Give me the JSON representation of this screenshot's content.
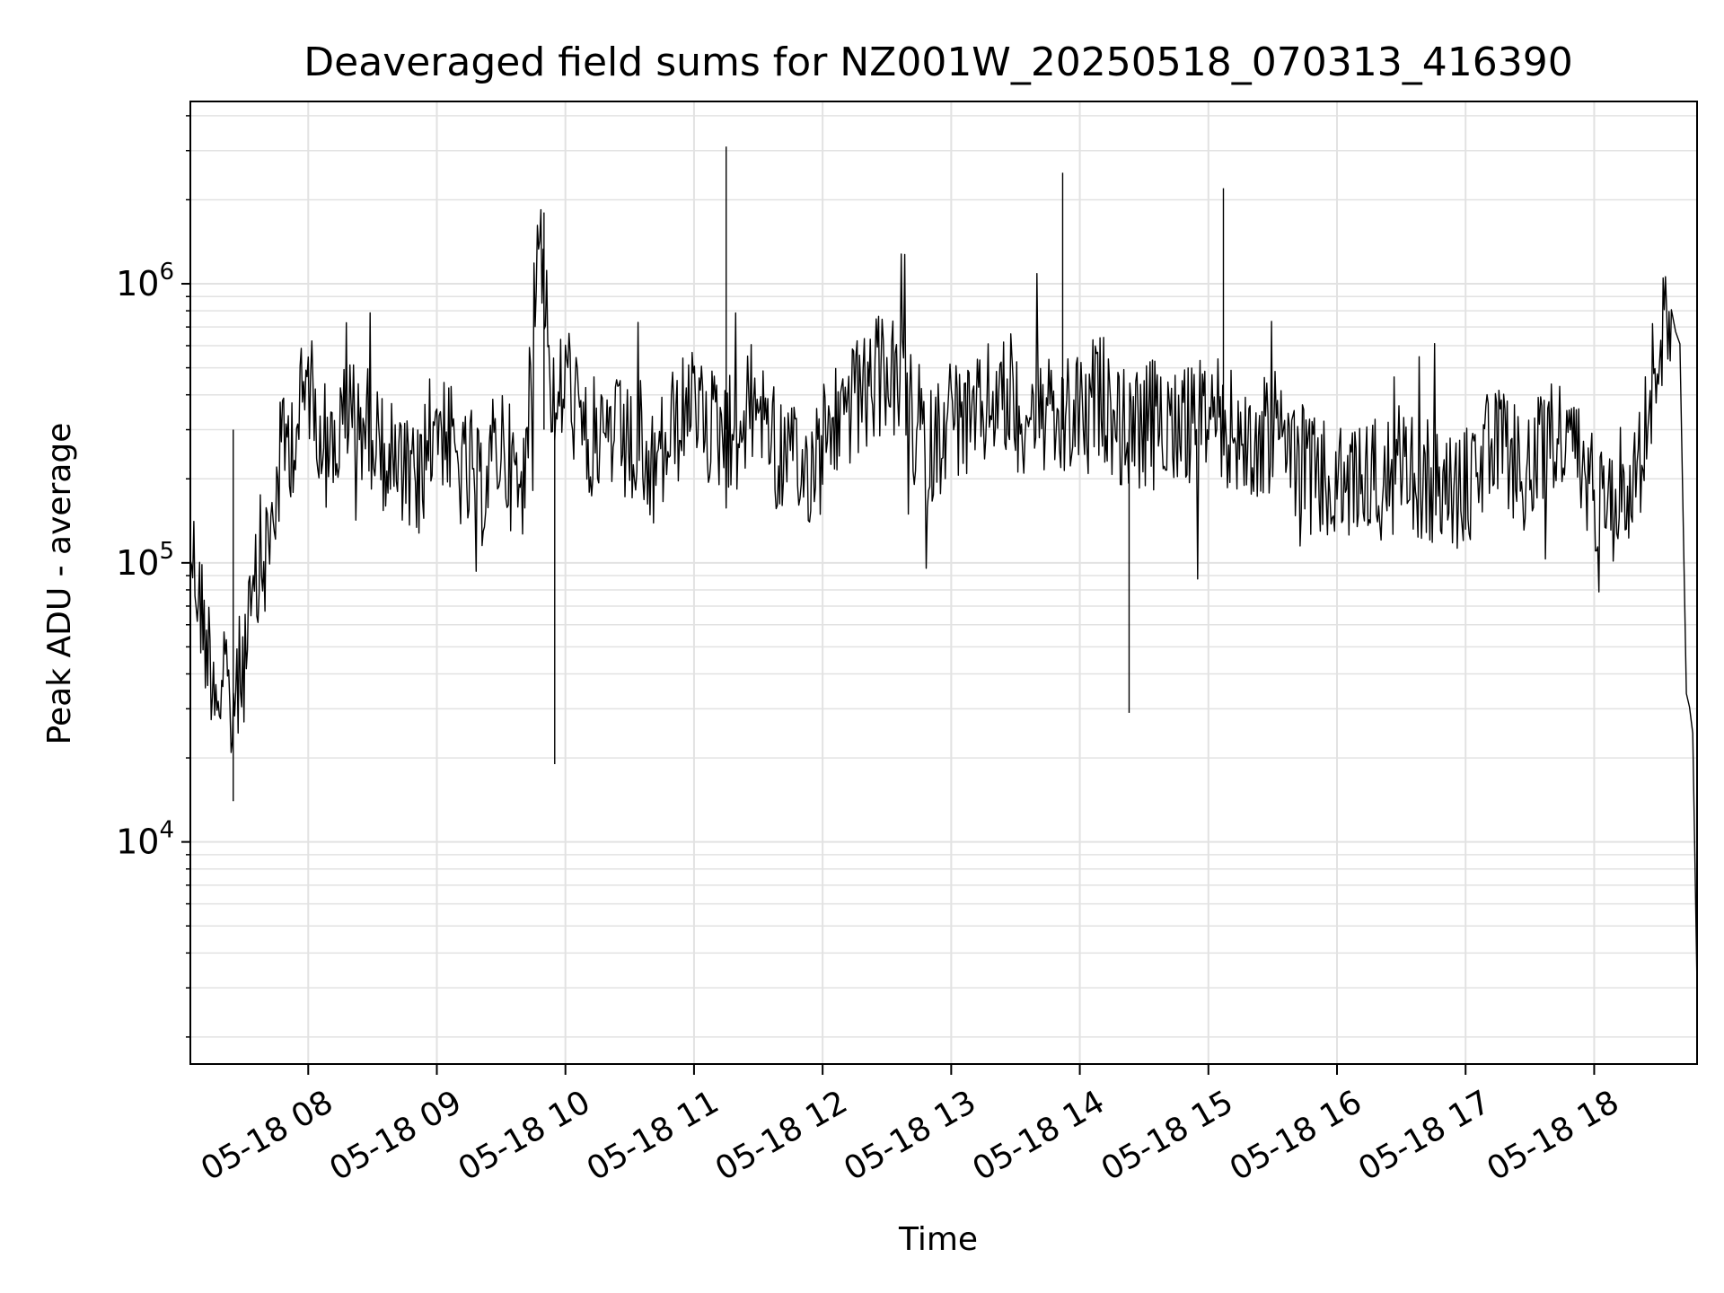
{
  "chart_data": {
    "type": "line",
    "title": "Deaveraged field sums for NZ001W_20250518_070313_416390",
    "xlabel": "Time",
    "ylabel": "Peak ADU - average",
    "yscale": "log",
    "grid": true,
    "xlim": [
      "2025-05-18 07:05",
      "2025-05-18 18:48"
    ],
    "ylim": [
      1600,
      4500000
    ],
    "x_ticks": [
      {
        "time": "2025-05-18 08:00",
        "label": "05-18 08"
      },
      {
        "time": "2025-05-18 09:00",
        "label": "05-18 09"
      },
      {
        "time": "2025-05-18 10:00",
        "label": "05-18 10"
      },
      {
        "time": "2025-05-18 11:00",
        "label": "05-18 11"
      },
      {
        "time": "2025-05-18 12:00",
        "label": "05-18 12"
      },
      {
        "time": "2025-05-18 13:00",
        "label": "05-18 13"
      },
      {
        "time": "2025-05-18 14:00",
        "label": "05-18 14"
      },
      {
        "time": "2025-05-18 15:00",
        "label": "05-18 15"
      },
      {
        "time": "2025-05-18 16:00",
        "label": "05-18 16"
      },
      {
        "time": "2025-05-18 17:00",
        "label": "05-18 17"
      },
      {
        "time": "2025-05-18 18:00",
        "label": "05-18 18"
      }
    ],
    "y_ticks": [
      {
        "value": 10000,
        "label": "10",
        "exp": "4"
      },
      {
        "value": 100000,
        "label": "10",
        "exp": "5"
      },
      {
        "value": 1000000,
        "label": "10",
        "exp": "6"
      }
    ],
    "line_color": "#000000",
    "series": [
      {
        "x": [
          "2025-05-18 07:05",
          "2025-05-18 07:12",
          "2025-05-18 07:18",
          "2025-05-18 07:24",
          "2025-05-18 07:30",
          "2025-05-18 07:36",
          "2025-05-18 07:42",
          "2025-05-18 07:48",
          "2025-05-18 07:54",
          "2025-05-18 08:00",
          "2025-05-18 08:10",
          "2025-05-18 08:20",
          "2025-05-18 08:30",
          "2025-05-18 08:40",
          "2025-05-18 08:50",
          "2025-05-18 09:00",
          "2025-05-18 09:10",
          "2025-05-18 09:20",
          "2025-05-18 09:30",
          "2025-05-18 09:40",
          "2025-05-18 09:48",
          "2025-05-18 09:55",
          "2025-05-18 10:00",
          "2025-05-18 10:10",
          "2025-05-18 10:20",
          "2025-05-18 10:30",
          "2025-05-18 10:40",
          "2025-05-18 10:50",
          "2025-05-18 10:58",
          "2025-05-18 11:10",
          "2025-05-18 11:20",
          "2025-05-18 11:30",
          "2025-05-18 11:40",
          "2025-05-18 11:50",
          "2025-05-18 12:00",
          "2025-05-18 12:10",
          "2025-05-18 12:20",
          "2025-05-18 12:30",
          "2025-05-18 12:40",
          "2025-05-18 12:50",
          "2025-05-18 13:00",
          "2025-05-18 13:10",
          "2025-05-18 13:20",
          "2025-05-18 13:30",
          "2025-05-18 13:40",
          "2025-05-18 13:50",
          "2025-05-18 14:00",
          "2025-05-18 14:10",
          "2025-05-18 14:20",
          "2025-05-18 14:30",
          "2025-05-18 14:40",
          "2025-05-18 14:50",
          "2025-05-18 15:00",
          "2025-05-18 15:10",
          "2025-05-18 15:20",
          "2025-05-18 15:30",
          "2025-05-18 15:40",
          "2025-05-18 15:50",
          "2025-05-18 16:00",
          "2025-05-18 16:10",
          "2025-05-18 16:20",
          "2025-05-18 16:30",
          "2025-05-18 16:40",
          "2025-05-18 16:50",
          "2025-05-18 17:00",
          "2025-05-18 17:10",
          "2025-05-18 17:20",
          "2025-05-18 17:30",
          "2025-05-18 17:40",
          "2025-05-18 17:50",
          "2025-05-18 18:00",
          "2025-05-18 18:10",
          "2025-05-18 18:20",
          "2025-05-18 18:30",
          "2025-05-18 18:36",
          "2025-05-18 18:40",
          "2025-05-18 18:43",
          "2025-05-18 18:46",
          "2025-05-18 18:48"
        ],
        "y": [
          120000,
          55000,
          35000,
          30000,
          45000,
          80000,
          120000,
          260000,
          300000,
          450000,
          250000,
          350000,
          300000,
          220000,
          180000,
          350000,
          220000,
          180000,
          280000,
          160000,
          1800000,
          300000,
          500000,
          250000,
          300000,
          250000,
          200000,
          300000,
          350000,
          300000,
          300000,
          400000,
          250000,
          200000,
          280000,
          350000,
          400000,
          500000,
          350000,
          250000,
          350000,
          300000,
          400000,
          350000,
          350000,
          300000,
          350000,
          400000,
          300000,
          300000,
          350000,
          300000,
          350000,
          300000,
          250000,
          300000,
          250000,
          200000,
          180000,
          200000,
          200000,
          220000,
          200000,
          180000,
          180000,
          250000,
          250000,
          200000,
          300000,
          250000,
          180000,
          200000,
          200000,
          600000,
          800000,
          600000,
          35000,
          25000,
          3000
        ]
      }
    ]
  }
}
